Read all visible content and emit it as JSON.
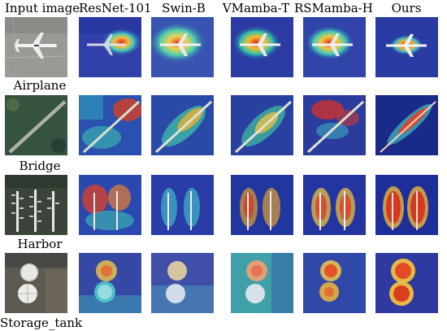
{
  "headers": [
    "Input image",
    "ResNet-101",
    "Swin-B",
    "VMamba-T",
    "RSMamba-H",
    "Ours"
  ],
  "rows": [
    {
      "label": "Airplane"
    },
    {
      "label": "Bridge"
    },
    {
      "label": "Harbor"
    },
    {
      "label": "Storage_tank"
    }
  ],
  "colors": {
    "heat_low": "#1a2a9a",
    "heat_mid": "#3cc8c8",
    "heat_high": "#d83020",
    "heat_peak": "#ffd040"
  }
}
